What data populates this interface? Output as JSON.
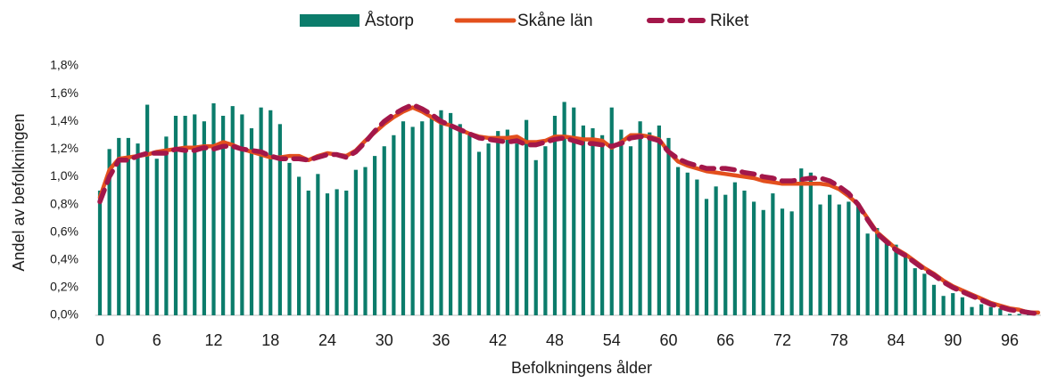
{
  "chart_data": {
    "type": "bar_line",
    "x_label": "Befolkningens ålder",
    "y_label": "Andel av befolkningen",
    "categories": [
      "0",
      null,
      null,
      null,
      null,
      null,
      "6",
      null,
      null,
      null,
      null,
      null,
      "12",
      null,
      null,
      null,
      null,
      null,
      "18",
      null,
      null,
      null,
      null,
      null,
      "24",
      null,
      null,
      null,
      null,
      null,
      "30",
      null,
      null,
      null,
      null,
      null,
      "36",
      null,
      null,
      null,
      null,
      null,
      "42",
      null,
      null,
      null,
      null,
      null,
      "48",
      null,
      null,
      null,
      null,
      null,
      "54",
      null,
      null,
      null,
      null,
      null,
      "60",
      null,
      null,
      null,
      null,
      null,
      "66",
      null,
      null,
      null,
      null,
      null,
      "72",
      null,
      null,
      null,
      null,
      null,
      "78",
      null,
      null,
      null,
      null,
      null,
      "84",
      null,
      null,
      null,
      null,
      null,
      "90",
      null,
      null,
      null,
      null,
      null,
      "96",
      null,
      null,
      null
    ],
    "ylim": [
      0,
      1.8
    ],
    "yticks": [
      {
        "value": 0,
        "label": "0,0%"
      },
      {
        "value": 0.2,
        "label": "0,2%"
      },
      {
        "value": 0.4,
        "label": "0,4%"
      },
      {
        "value": 0.6,
        "label": "0,6%"
      },
      {
        "value": 0.8,
        "label": "0,8%"
      },
      {
        "value": 1.0,
        "label": "1,0%"
      },
      {
        "value": 1.2,
        "label": "1,2%"
      },
      {
        "value": 1.4,
        "label": "1,4%"
      },
      {
        "value": 1.6,
        "label": "1,6%"
      },
      {
        "value": 1.8,
        "label": "1,8%"
      }
    ],
    "legend": "top",
    "series": [
      {
        "name": "Åstorp",
        "type": "bar",
        "color": "#0b7c6b",
        "values": [
          0.9,
          1.2,
          1.28,
          1.28,
          1.24,
          1.52,
          1.13,
          1.29,
          1.44,
          1.44,
          1.45,
          1.4,
          1.53,
          1.44,
          1.51,
          1.45,
          1.35,
          1.5,
          1.48,
          1.38,
          1.1,
          1.0,
          0.9,
          1.02,
          0.88,
          0.91,
          0.9,
          1.05,
          1.07,
          1.15,
          1.22,
          1.3,
          1.4,
          1.36,
          1.4,
          1.43,
          1.48,
          1.46,
          1.38,
          1.3,
          1.18,
          1.24,
          1.33,
          1.34,
          1.24,
          1.41,
          1.12,
          1.22,
          1.44,
          1.54,
          1.5,
          1.37,
          1.35,
          1.3,
          1.5,
          1.34,
          1.22,
          1.4,
          1.32,
          1.37,
          1.28,
          1.07,
          1.03,
          0.98,
          0.84,
          0.93,
          0.87,
          0.96,
          0.9,
          0.82,
          0.76,
          0.88,
          0.77,
          0.75,
          1.06,
          1.03,
          0.8,
          0.87,
          0.8,
          0.82,
          0.8,
          0.59,
          0.63,
          0.52,
          0.51,
          0.42,
          0.34,
          0.3,
          0.22,
          0.14,
          0.16,
          0.13,
          0.06,
          0.08,
          0.06,
          0.05,
          0.01,
          0.01,
          0.01,
          0.0
        ]
      },
      {
        "name": "Skåne län",
        "type": "line",
        "color": "#e3501d",
        "values": [
          0.85,
          1.05,
          1.13,
          1.14,
          1.15,
          1.16,
          1.18,
          1.19,
          1.2,
          1.21,
          1.21,
          1.22,
          1.22,
          1.25,
          1.23,
          1.2,
          1.18,
          1.16,
          1.14,
          1.14,
          1.15,
          1.15,
          1.12,
          1.15,
          1.17,
          1.16,
          1.15,
          1.19,
          1.26,
          1.32,
          1.38,
          1.43,
          1.47,
          1.5,
          1.47,
          1.43,
          1.39,
          1.37,
          1.34,
          1.31,
          1.29,
          1.28,
          1.28,
          1.28,
          1.29,
          1.25,
          1.25,
          1.26,
          1.29,
          1.29,
          1.28,
          1.27,
          1.27,
          1.26,
          1.21,
          1.25,
          1.3,
          1.3,
          1.29,
          1.27,
          1.18,
          1.11,
          1.08,
          1.06,
          1.04,
          1.03,
          1.02,
          1.01,
          1.0,
          0.99,
          0.97,
          0.96,
          0.95,
          0.95,
          0.95,
          0.95,
          0.95,
          0.94,
          0.91,
          0.86,
          0.8,
          0.7,
          0.6,
          0.54,
          0.48,
          0.44,
          0.39,
          0.34,
          0.3,
          0.25,
          0.21,
          0.18,
          0.15,
          0.12,
          0.09,
          0.07,
          0.05,
          0.04,
          0.02,
          0.02
        ]
      },
      {
        "name": "Riket",
        "type": "line",
        "dashed": true,
        "color": "#a3174a",
        "values": [
          0.82,
          1.0,
          1.12,
          1.12,
          1.15,
          1.17,
          1.17,
          1.17,
          1.2,
          1.19,
          1.19,
          1.21,
          1.2,
          1.22,
          1.22,
          1.2,
          1.19,
          1.18,
          1.15,
          1.13,
          1.13,
          1.13,
          1.12,
          1.14,
          1.16,
          1.16,
          1.14,
          1.18,
          1.25,
          1.33,
          1.4,
          1.45,
          1.49,
          1.52,
          1.49,
          1.45,
          1.4,
          1.37,
          1.34,
          1.31,
          1.28,
          1.27,
          1.26,
          1.25,
          1.26,
          1.23,
          1.23,
          1.25,
          1.27,
          1.28,
          1.26,
          1.24,
          1.24,
          1.23,
          1.22,
          1.24,
          1.28,
          1.29,
          1.28,
          1.26,
          1.18,
          1.13,
          1.1,
          1.08,
          1.06,
          1.06,
          1.06,
          1.05,
          1.03,
          1.02,
          1.0,
          0.99,
          0.97,
          0.97,
          0.98,
          0.99,
          0.99,
          0.97,
          0.93,
          0.88,
          0.8,
          0.69,
          0.59,
          0.53,
          0.47,
          0.43,
          0.38,
          0.33,
          0.29,
          0.24,
          0.2,
          0.17,
          0.14,
          0.11,
          0.08,
          0.06,
          0.04,
          0.03,
          0.02,
          0.01
        ]
      }
    ]
  }
}
